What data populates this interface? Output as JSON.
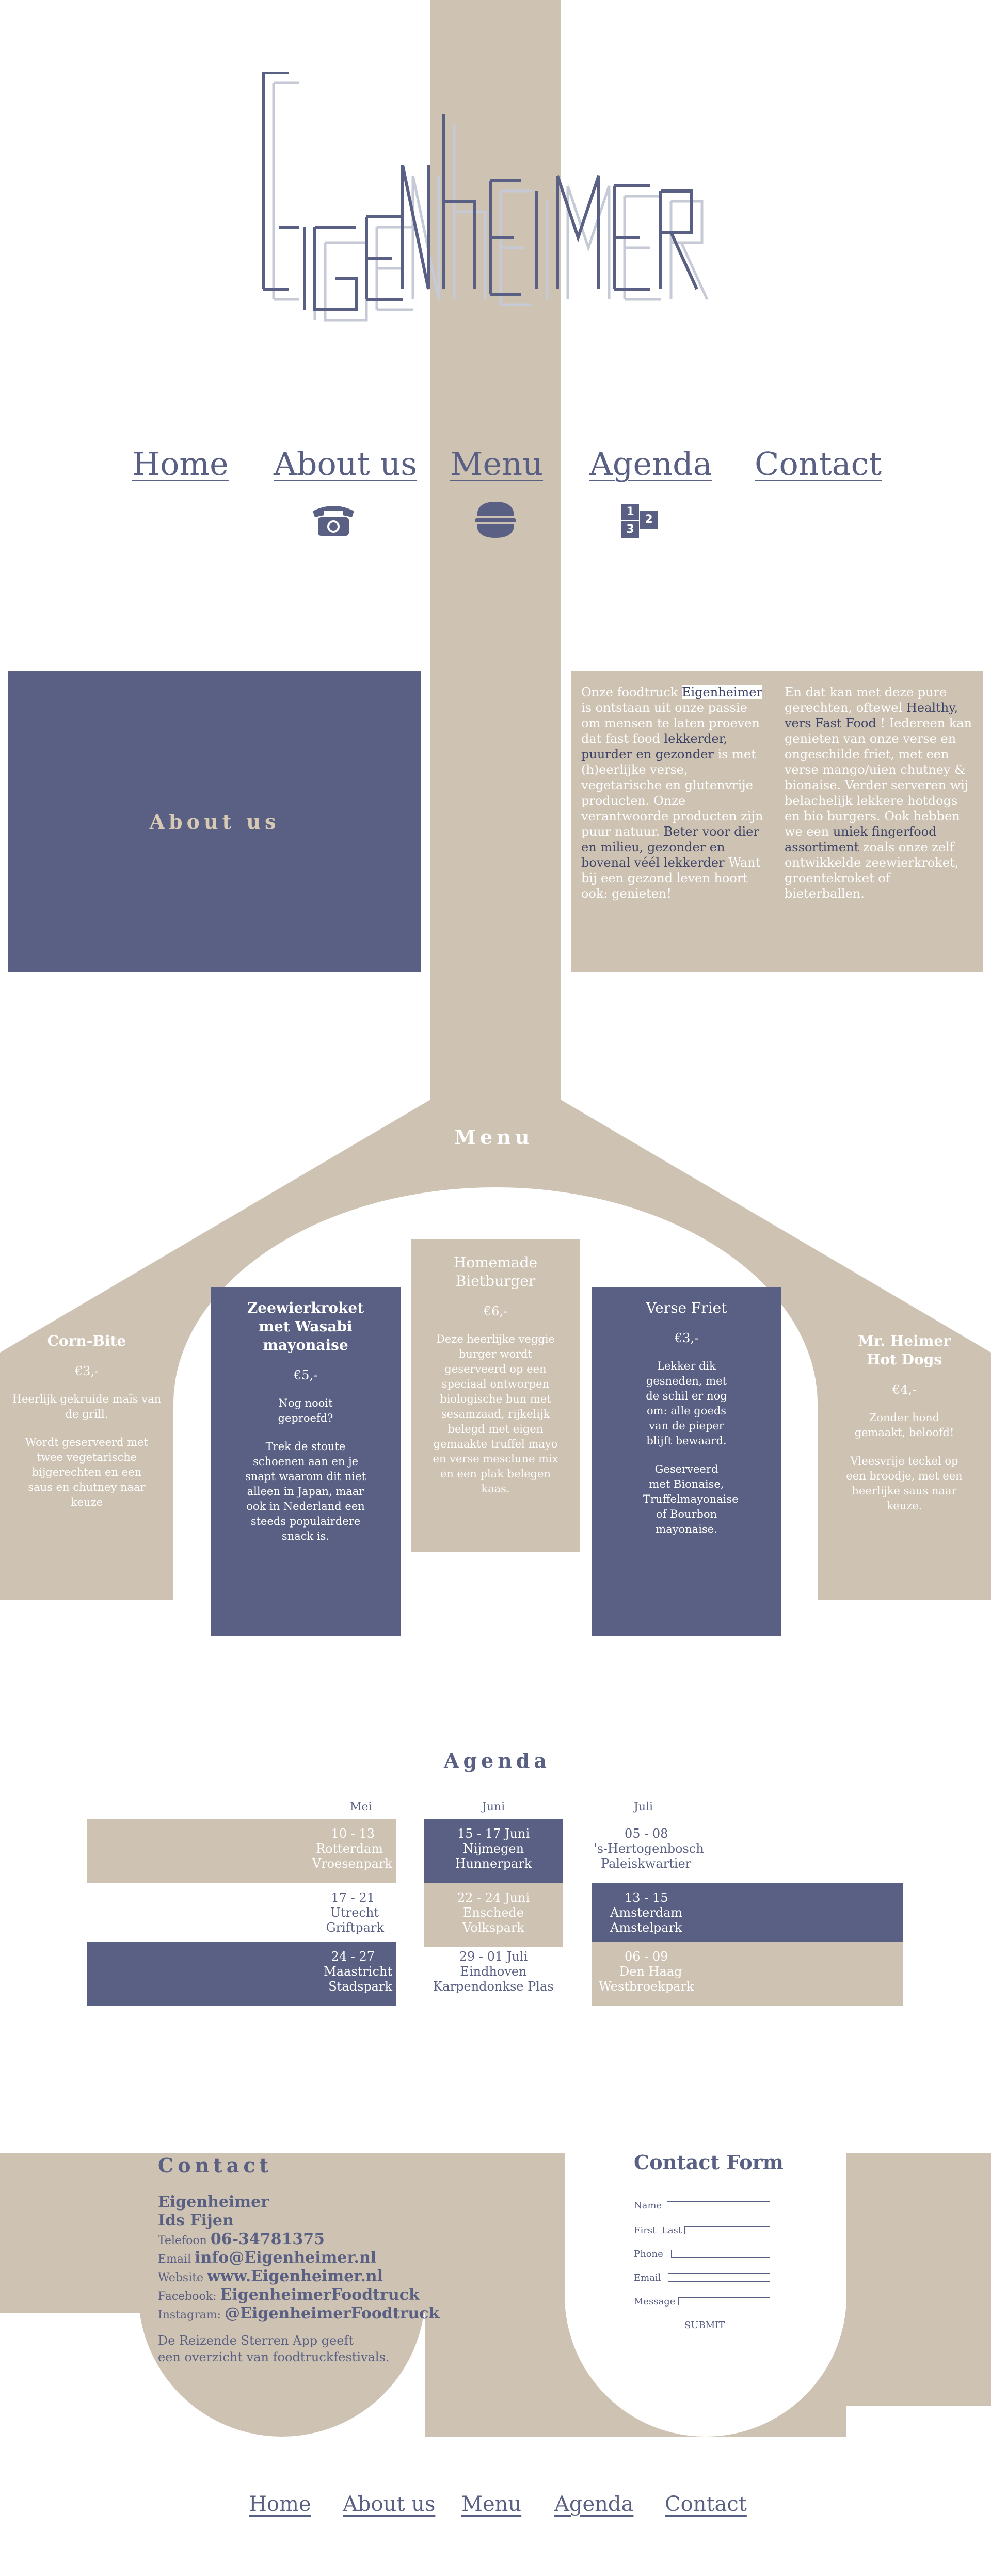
{
  "brand": {
    "logo_text": "Eigenheimer"
  },
  "colors": {
    "navy": "#5a6083",
    "tan": "#cec2b2",
    "background": "#ffffff"
  },
  "nav": {
    "home": "Home",
    "about": "About us",
    "menu": "Menu",
    "agenda": "Agenda",
    "contact": "Contact"
  },
  "nav_icons": [
    "telephone-icon",
    "burger-icon",
    "podium-icon"
  ],
  "podium": {
    "first": "1",
    "second": "2",
    "third": "3"
  },
  "about": {
    "title": "About us",
    "col1": {
      "p1a": "Onze foodtruck ",
      "p1b": "Eigenheimer",
      "p1c": " is ontstaan uit onze passie om mensen te laten proeven dat fast food ",
      "p1d": "lekkerder, puurder en gezonder",
      "p1e": " is met (h)eerlijke verse, vegetarische en glutenvrije producten. Onze verantwoorde producten zijn puur natuur. ",
      "p1f": "Beter voor dier en milieu, gezonder en bovenal véél lekkerder",
      "p1g": " Want bij een gezond leven hoort ook: genieten!"
    },
    "col2": {
      "p2a": "En dat kan met deze pure gerechten, oftewel ",
      "p2b": "Healthy, vers Fast Food",
      "p2c": " ! Iedereen kan genieten van onze verse en ongeschilde friet, met een verse mango/uien chutney & bionaise. Verder serveren wij belachelijk lekkere hotdogs en bio burgers. Ook hebben we een ",
      "p2d": "uniek fingerfood assortiment",
      "p2e": " zoals onze zelf ontwikkelde zeewierkroket, groentekroket of bieterballen."
    }
  },
  "menu": {
    "title": "Menu",
    "items": [
      {
        "title": "Corn-Bite",
        "price": "€3,-",
        "desc1": "Heerlijk gekruide maïs van de grill.",
        "desc2": "Wordt geserveerd met twee vegetarische bijgerechten en een saus en chutney naar keuze"
      },
      {
        "title": "Zeewierkroket met Wasabi mayonaise",
        "price": "€5,-",
        "desc1": "Nog nooit geproefd?",
        "desc2": "Trek de stoute schoenen aan en je snapt waarom dit niet alleen in Japan, maar ook in Nederland een steeds populairdere snack is."
      },
      {
        "title": "Homemade Bietburger",
        "price": "€6,-",
        "desc1": "Deze heerlijke veggie burger wordt geserveerd op een speciaal ontworpen biologische bun met sesamzaad, rijkelijk belegd met eigen gemaakte truffel mayo en verse mesclune mix en een plak belegen kaas.",
        "desc2": ""
      },
      {
        "title": "Verse Friet",
        "price": "€3,-",
        "desc1": "Lekker dik gesneden, met de schil er nog om: alle goeds van de pieper blijft bewaard.",
        "desc2": "Geserveerd met Bionaise, Truffelmayonaise of Bourbon mayonaise."
      },
      {
        "title": "Mr. Heimer Hot Dogs",
        "price": "€4,-",
        "desc1": "Zonder hond gemaakt, beloofd!",
        "desc2": "Vleesvrije teckel op een broodje, met een heerlijke saus naar keuze."
      }
    ]
  },
  "agenda": {
    "title": "Agenda",
    "months": [
      "Mei",
      "Juni",
      "Juli"
    ],
    "rows": [
      [
        {
          "date": "10 - 13",
          "city": "Rotterdam",
          "venue": "Vroesenpark"
        },
        {
          "date": "15 - 17 Juni",
          "city": "Nijmegen",
          "venue": "Hunnerpark"
        },
        {
          "date": "05 - 08",
          "city": "'s-Hertogenbosch",
          "venue": "Paleiskwartier"
        }
      ],
      [
        {
          "date": "17 - 21",
          "city": "Utrecht",
          "venue": "Griftpark"
        },
        {
          "date": "22 - 24 Juni",
          "city": "Enschede",
          "venue": "Volkspark"
        },
        {
          "date": "13 - 15",
          "city": "Amsterdam",
          "venue": "Amstelpark"
        }
      ],
      [
        {
          "date": "24 - 27",
          "city": "Maastricht",
          "venue": "Stadspark"
        },
        {
          "date": "29 - 01 Juli",
          "city": "Eindhoven",
          "venue": "Karpendonkse Plas"
        },
        {
          "date": "06 - 09",
          "city": "Den Haag",
          "venue": "Westbroekpark"
        }
      ]
    ]
  },
  "contact": {
    "title": "Contact",
    "company": "Eigenheimer",
    "person": "Ids Fijen",
    "phone_label": "Telefoon",
    "phone": "06-34781375",
    "email_label": "Email",
    "email": "info@Eigenheimer.nl",
    "website_label": "Website",
    "website": "www.Eigenheimer.nl",
    "facebook_label": "Facebook:",
    "facebook": "EigenheimerFoodtruck",
    "instagram_label": "Instagram:",
    "instagram": "@EigenheimerFoodtruck",
    "note1": "De Reizende Sterren App geeft",
    "note2": "een overzicht van foodtruckfestivals."
  },
  "form": {
    "title": "Contact Form",
    "name_label": "Name",
    "first_label": "First",
    "last_label": "Last",
    "phone_label": "Phone",
    "email_label": "Email",
    "message_label": "Message",
    "submit_label": "SUBMIT"
  },
  "footer_nav": {
    "home": "Home",
    "about": "About us",
    "menu": "Menu",
    "agenda": "Agenda",
    "contact": "Contact"
  }
}
